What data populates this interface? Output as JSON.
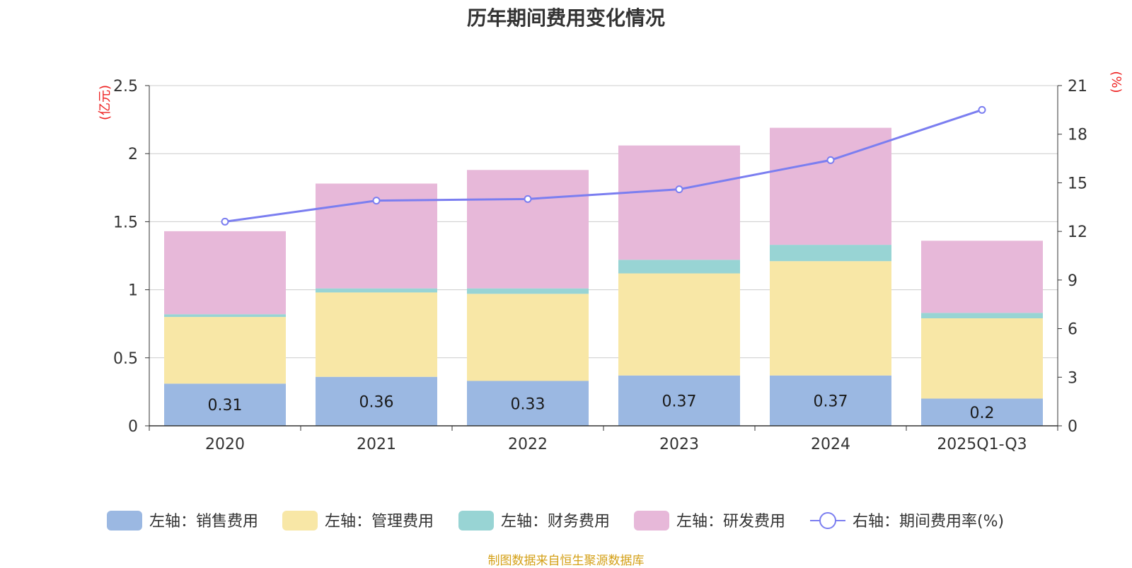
{
  "chart_data": {
    "type": "bar",
    "stacked": true,
    "title": "历年期间费用变化情况",
    "categories": [
      "2020",
      "2021",
      "2022",
      "2023",
      "2024",
      "2025Q1-Q3"
    ],
    "left_axis": {
      "unit": "(亿元)",
      "ylim": [
        0,
        2.5
      ],
      "ticks": [
        "0",
        "0.5",
        "1",
        "1.5",
        "2",
        "2.5"
      ],
      "tick_values": [
        0,
        0.5,
        1,
        1.5,
        2,
        2.5
      ]
    },
    "right_axis": {
      "unit": "(%)",
      "ylim": [
        0,
        21
      ],
      "ticks": [
        "0",
        "3",
        "6",
        "9",
        "12",
        "15",
        "18",
        "21"
      ],
      "tick_values": [
        0,
        3,
        6,
        9,
        12,
        15,
        18,
        21
      ]
    },
    "series": [
      {
        "name": "左轴：销售费用",
        "axis": "left",
        "color": "#9bb8e2",
        "values": [
          0.31,
          0.36,
          0.33,
          0.37,
          0.37,
          0.2
        ],
        "labels": [
          "0.31",
          "0.36",
          "0.33",
          "0.37",
          "0.37",
          "0.2"
        ]
      },
      {
        "name": "左轴：管理费用",
        "axis": "left",
        "color": "#f8e7a6",
        "values": [
          0.49,
          0.62,
          0.64,
          0.75,
          0.84,
          0.59
        ]
      },
      {
        "name": "左轴：财务费用",
        "axis": "left",
        "color": "#98d4d4",
        "values": [
          0.02,
          0.03,
          0.04,
          0.1,
          0.12,
          0.04
        ]
      },
      {
        "name": "左轴：研发费用",
        "axis": "left",
        "color": "#e7b8d9",
        "values": [
          0.61,
          0.77,
          0.87,
          0.84,
          0.86,
          0.53
        ]
      },
      {
        "name": "右轴：期间费用率(%)",
        "axis": "right",
        "type": "line",
        "color": "#7b7ef0",
        "values": [
          12.6,
          13.9,
          14.0,
          14.6,
          16.4,
          19.5
        ]
      }
    ],
    "source": "制图数据来自恒生聚源数据库"
  }
}
